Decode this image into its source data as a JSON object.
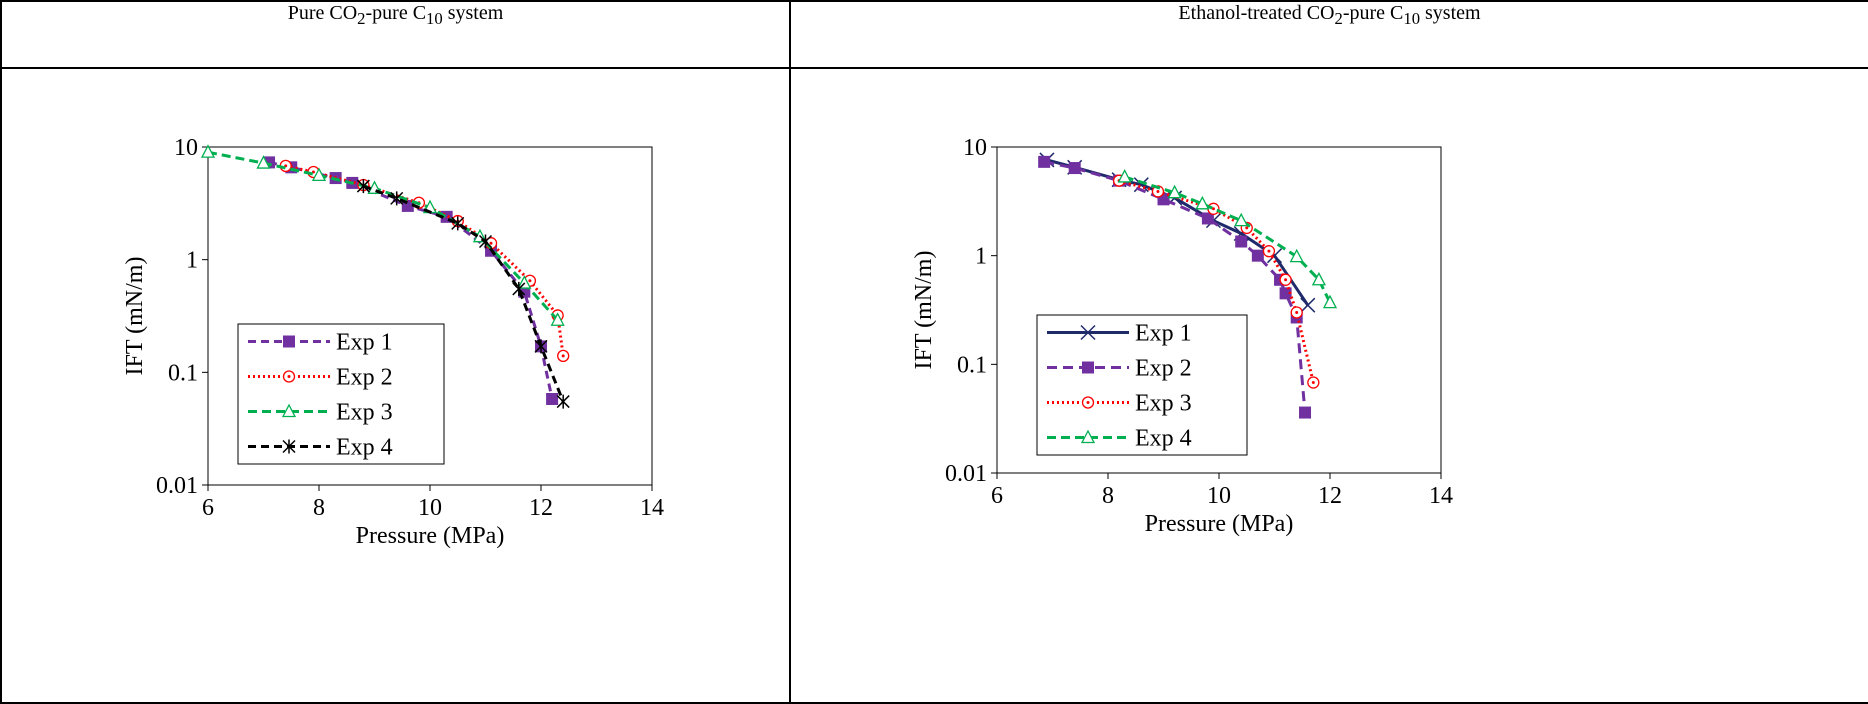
{
  "headers": [
    {
      "pre": "Pure CO",
      "sub1": "2",
      "mid": "-pure C",
      "sub2": "10",
      "post": " system"
    },
    {
      "pre": "Ethanol-treated CO",
      "sub1": "2",
      "mid": "-pure C",
      "sub2": "10",
      "post": " system"
    }
  ],
  "chart_data": [
    {
      "type": "line",
      "title": "Pure CO2-pure C10 system",
      "xlabel": "Pressure (MPa)",
      "ylabel": "IFT (mN/m)",
      "xlim": [
        6,
        14
      ],
      "ylim": [
        0.01,
        10
      ],
      "yscale": "log",
      "xticks": [
        "6",
        "8",
        "10",
        "12",
        "14"
      ],
      "yticks": [
        "0.01",
        "0.1",
        "1",
        "10"
      ],
      "legend_position": "bottom-left",
      "series": [
        {
          "name": "Exp 1",
          "color": "#7030A0",
          "dash": "8,5",
          "marker": "square",
          "x": [
            7.1,
            7.5,
            8.3,
            8.6,
            9.6,
            10.3,
            11.1,
            11.7,
            12.0,
            12.2
          ],
          "y": [
            7.3,
            6.6,
            5.3,
            4.8,
            3.0,
            2.4,
            1.2,
            0.52,
            0.17,
            0.058
          ]
        },
        {
          "name": "Exp 2",
          "color": "#FF0000",
          "dash": "2,3",
          "marker": "circle",
          "x": [
            7.4,
            7.9,
            8.8,
            9.8,
            10.5,
            11.1,
            11.8,
            12.3,
            12.4
          ],
          "y": [
            6.8,
            6.0,
            4.6,
            3.2,
            2.2,
            1.4,
            0.65,
            0.32,
            0.14
          ]
        },
        {
          "name": "Exp 3",
          "color": "#00B050",
          "dash": "9,5",
          "marker": "triangle",
          "x": [
            6.0,
            7.0,
            8.0,
            9.0,
            10.0,
            10.9,
            11.7,
            12.3
          ],
          "y": [
            9.0,
            7.2,
            5.6,
            4.3,
            2.9,
            1.6,
            0.62,
            0.29
          ]
        },
        {
          "name": "Exp 4",
          "color": "#000000",
          "dash": "8,5",
          "marker": "asterisk",
          "x": [
            8.8,
            9.4,
            10.5,
            11.0,
            11.6,
            12.0,
            12.4
          ],
          "y": [
            4.5,
            3.5,
            2.1,
            1.45,
            0.55,
            0.17,
            0.055
          ]
        }
      ]
    },
    {
      "type": "line",
      "title": "Ethanol-treated CO2-pure C10 system",
      "xlabel": "Pressure (MPa)",
      "ylabel": "IFT (mN/m)",
      "xlim": [
        6,
        14
      ],
      "ylim": [
        0.01,
        10
      ],
      "yscale": "log",
      "xticks": [
        "6",
        "8",
        "10",
        "12",
        "14"
      ],
      "yticks": [
        "0.01",
        "0.1",
        "1",
        "10"
      ],
      "legend_position": "bottom-left",
      "series": [
        {
          "name": "Exp 1",
          "color": "#1F2A6B",
          "dash": "",
          "marker": "x",
          "x": [
            6.9,
            7.4,
            8.2,
            8.6,
            9.2,
            9.9,
            10.4,
            11.0,
            11.6
          ],
          "y": [
            7.6,
            6.5,
            5.0,
            4.5,
            3.4,
            2.1,
            1.6,
            1.0,
            0.35
          ]
        },
        {
          "name": "Exp 2",
          "color": "#7030A0",
          "dash": "10,6",
          "marker": "square",
          "x": [
            6.85,
            7.4,
            8.2,
            9.0,
            9.8,
            10.4,
            10.7,
            11.1,
            11.2,
            11.4,
            11.55
          ],
          "y": [
            7.3,
            6.4,
            4.9,
            3.3,
            2.2,
            1.35,
            1.0,
            0.6,
            0.45,
            0.27,
            0.036
          ]
        },
        {
          "name": "Exp 3",
          "color": "#FF0000",
          "dash": "2,3",
          "marker": "circle",
          "x": [
            8.2,
            8.9,
            9.9,
            10.5,
            10.9,
            11.2,
            11.4,
            11.7
          ],
          "y": [
            4.9,
            3.9,
            2.7,
            1.8,
            1.1,
            0.6,
            0.3,
            0.068
          ]
        },
        {
          "name": "Exp 4",
          "color": "#00B050",
          "dash": "9,5",
          "marker": "triangle",
          "x": [
            8.3,
            9.2,
            9.7,
            10.4,
            11.4,
            11.8,
            12.0
          ],
          "y": [
            5.3,
            3.8,
            3.0,
            2.1,
            0.98,
            0.6,
            0.37
          ]
        }
      ]
    }
  ]
}
